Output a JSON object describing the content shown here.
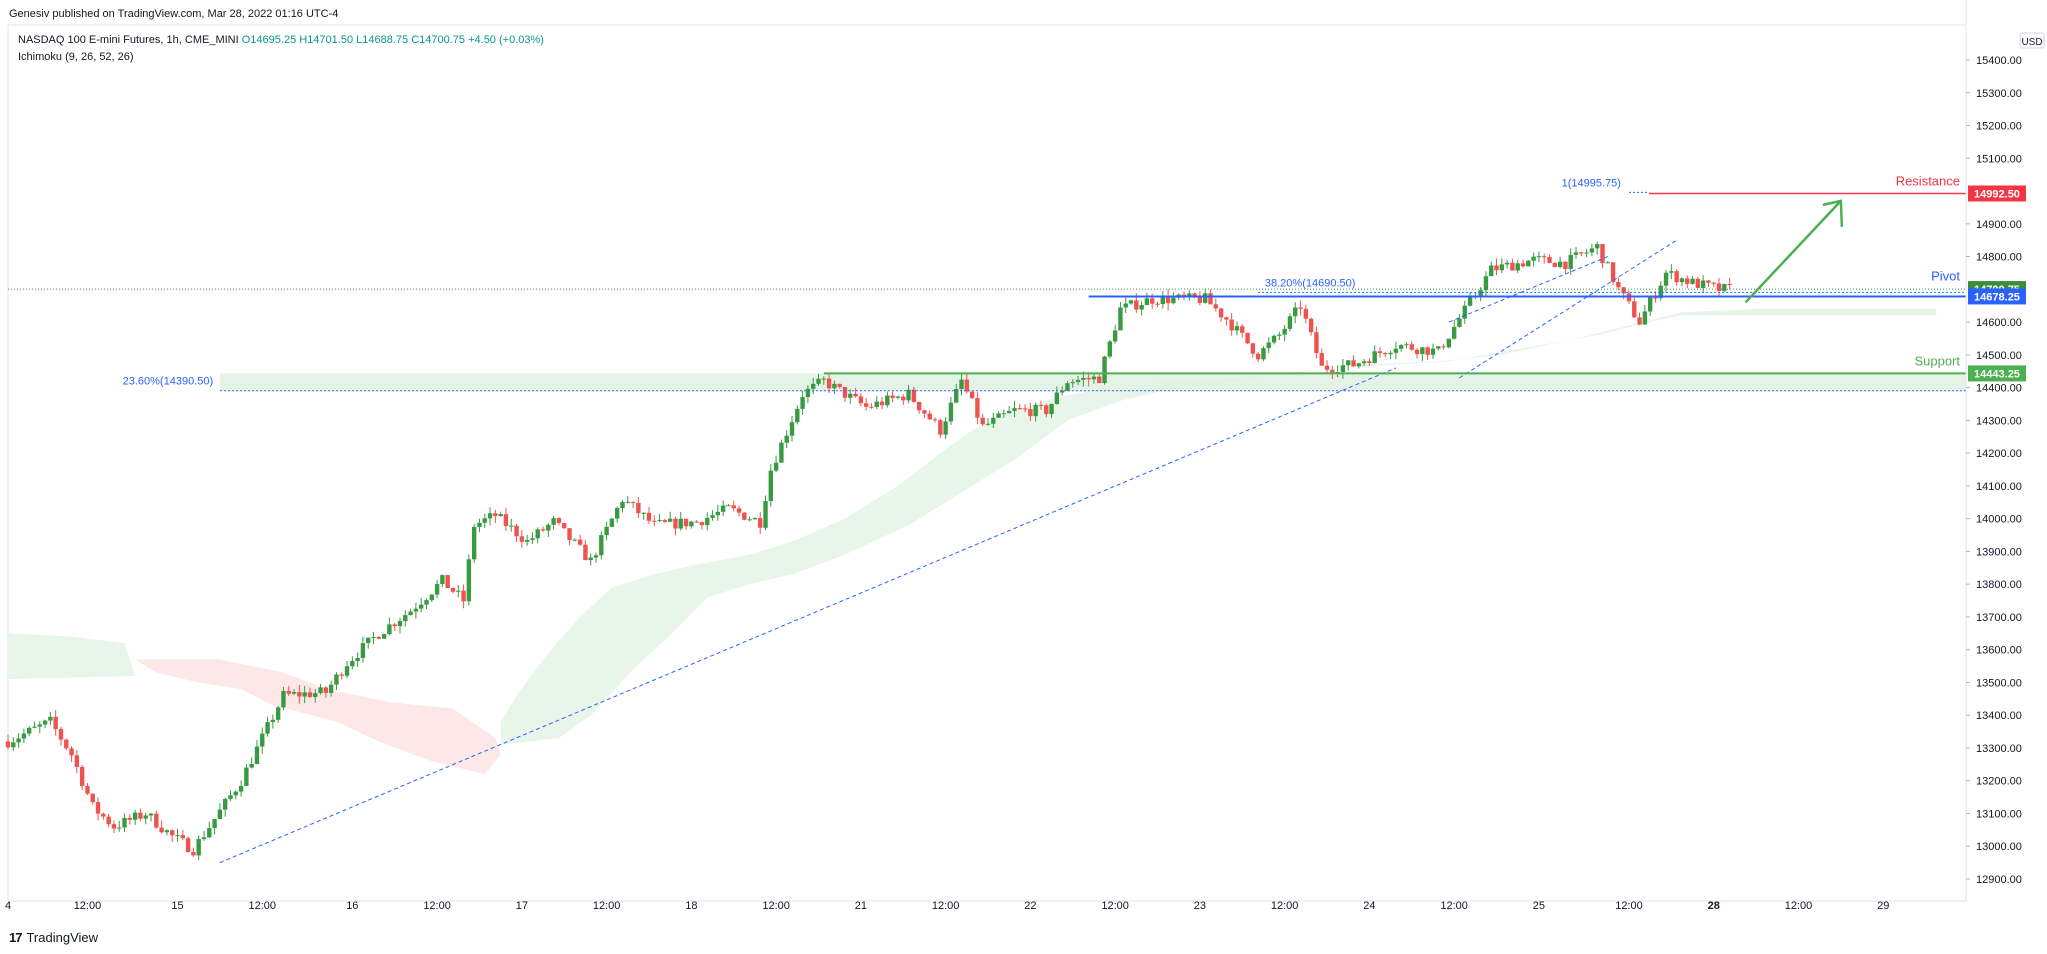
{
  "header": {
    "published": "Genesiv published on TradingView.com, Mar 28, 2022 01:16 UTC-4",
    "symbol": "NASDAQ 100 E-mini Futures, 1h, CME_MINI",
    "ohlc": {
      "o": "O14695.25",
      "h": "H14701.50",
      "l": "L14688.75",
      "c": "C14700.75",
      "change": "+4.50 (+0.03%)"
    },
    "indicator": "Ichimoku (9, 26, 52, 26)"
  },
  "footer": {
    "brand": "TradingView"
  },
  "colors": {
    "up": "#3a9a42",
    "down": "#ef5350",
    "blue": "#2962ff",
    "fib": "#2962ff",
    "green": "#4caf50",
    "red": "#f23645",
    "cloud_bull": "#e8f5e9",
    "cloud_bear": "#fde7e7"
  },
  "chart_data": {
    "type": "candlestick",
    "currency": "USD",
    "y_axis": {
      "range": [
        12900,
        15400
      ],
      "ticks": [
        "15400.00",
        "15300.00",
        "15200.00",
        "15100.00",
        "14900.00",
        "14800.00",
        "14600.00",
        "14500.00",
        "14400.00",
        "14300.00",
        "14200.00",
        "14100.00",
        "14000.00",
        "13900.00",
        "13800.00",
        "13700.00",
        "13600.00",
        "13500.00",
        "13400.00",
        "13300.00",
        "13200.00",
        "13100.00",
        "13000.00",
        "12900.00"
      ]
    },
    "x_axis": {
      "range": [
        0,
        370
      ],
      "ticks": [
        {
          "t": 0,
          "label": "4"
        },
        {
          "t": 15,
          "label": "12:00"
        },
        {
          "t": 32,
          "label": "15"
        },
        {
          "t": 48,
          "label": "12:00"
        },
        {
          "t": 65,
          "label": "16"
        },
        {
          "t": 81,
          "label": "12:00"
        },
        {
          "t": 97,
          "label": "17"
        },
        {
          "t": 113,
          "label": "12:00"
        },
        {
          "t": 129,
          "label": "18"
        },
        {
          "t": 145,
          "label": "12:00"
        },
        {
          "t": 161,
          "label": "21"
        },
        {
          "t": 177,
          "label": "12:00"
        },
        {
          "t": 193,
          "label": "22"
        },
        {
          "t": 209,
          "label": "12:00"
        },
        {
          "t": 225,
          "label": "23"
        },
        {
          "t": 241,
          "label": "12:00"
        },
        {
          "t": 257,
          "label": "24"
        },
        {
          "t": 273,
          "label": "12:00"
        },
        {
          "t": 289,
          "label": "25"
        },
        {
          "t": 306,
          "label": "12:00"
        },
        {
          "t": 322,
          "label": "28"
        },
        {
          "t": 338,
          "label": "12:00"
        },
        {
          "t": 354,
          "label": "29"
        }
      ]
    },
    "anchors": [
      {
        "t": 0,
        "p": 13320
      },
      {
        "t": 8,
        "p": 13380
      },
      {
        "t": 12,
        "p": 13280
      },
      {
        "t": 16,
        "p": 13120
      },
      {
        "t": 20,
        "p": 13060
      },
      {
        "t": 26,
        "p": 13100
      },
      {
        "t": 31,
        "p": 13030
      },
      {
        "t": 35,
        "p": 12990
      },
      {
        "t": 38,
        "p": 13060
      },
      {
        "t": 44,
        "p": 13200
      },
      {
        "t": 48,
        "p": 13330
      },
      {
        "t": 52,
        "p": 13460
      },
      {
        "t": 60,
        "p": 13470
      },
      {
        "t": 64,
        "p": 13560
      },
      {
        "t": 70,
        "p": 13650
      },
      {
        "t": 76,
        "p": 13720
      },
      {
        "t": 82,
        "p": 13810
      },
      {
        "t": 86,
        "p": 13750
      },
      {
        "t": 88,
        "p": 13980
      },
      {
        "t": 92,
        "p": 14010
      },
      {
        "t": 98,
        "p": 13930
      },
      {
        "t": 103,
        "p": 13990
      },
      {
        "t": 110,
        "p": 13870
      },
      {
        "t": 116,
        "p": 14060
      },
      {
        "t": 122,
        "p": 13980
      },
      {
        "t": 130,
        "p": 13990
      },
      {
        "t": 136,
        "p": 14030
      },
      {
        "t": 142,
        "p": 13990
      },
      {
        "t": 144,
        "p": 14150
      },
      {
        "t": 150,
        "p": 14380
      },
      {
        "t": 154,
        "p": 14420
      },
      {
        "t": 162,
        "p": 14340
      },
      {
        "t": 170,
        "p": 14380
      },
      {
        "t": 176,
        "p": 14270
      },
      {
        "t": 180,
        "p": 14420
      },
      {
        "t": 184,
        "p": 14280
      },
      {
        "t": 190,
        "p": 14330
      },
      {
        "t": 196,
        "p": 14330
      },
      {
        "t": 200,
        "p": 14420
      },
      {
        "t": 206,
        "p": 14430
      },
      {
        "t": 210,
        "p": 14640
      },
      {
        "t": 216,
        "p": 14670
      },
      {
        "t": 226,
        "p": 14670
      },
      {
        "t": 230,
        "p": 14610
      },
      {
        "t": 236,
        "p": 14500
      },
      {
        "t": 240,
        "p": 14560
      },
      {
        "t": 244,
        "p": 14650
      },
      {
        "t": 248,
        "p": 14460
      },
      {
        "t": 254,
        "p": 14470
      },
      {
        "t": 262,
        "p": 14530
      },
      {
        "t": 270,
        "p": 14510
      },
      {
        "t": 274,
        "p": 14610
      },
      {
        "t": 280,
        "p": 14760
      },
      {
        "t": 288,
        "p": 14790
      },
      {
        "t": 294,
        "p": 14780
      },
      {
        "t": 300,
        "p": 14830
      },
      {
        "t": 304,
        "p": 14700
      },
      {
        "t": 308,
        "p": 14600
      },
      {
        "t": 313,
        "p": 14750
      },
      {
        "t": 318,
        "p": 14720
      },
      {
        "t": 323,
        "p": 14700
      },
      {
        "t": 325,
        "p": 14700
      }
    ],
    "cloud_bull": [
      [
        [
          0,
          13650
        ],
        [
          12,
          13640
        ],
        [
          22,
          13620
        ],
        [
          24,
          13520
        ],
        [
          0,
          13510
        ]
      ],
      [
        [
          93,
          13310
        ],
        [
          104,
          13330
        ],
        [
          110,
          13400
        ],
        [
          118,
          13540
        ],
        [
          126,
          13660
        ],
        [
          132,
          13760
        ],
        [
          140,
          13800
        ],
        [
          148,
          13830
        ],
        [
          158,
          13890
        ],
        [
          170,
          13980
        ],
        [
          180,
          14080
        ],
        [
          190,
          14180
        ],
        [
          200,
          14300
        ],
        [
          210,
          14360
        ],
        [
          218,
          14390
        ],
        [
          228,
          14410
        ],
        [
          240,
          14440
        ],
        [
          250,
          14460
        ],
        [
          262,
          14470
        ],
        [
          272,
          14480
        ],
        [
          286,
          14520
        ],
        [
          300,
          14560
        ],
        [
          310,
          14600
        ],
        [
          316,
          14620
        ],
        [
          340,
          14620
        ],
        [
          364,
          14620
        ],
        [
          364,
          14640
        ],
        [
          330,
          14640
        ],
        [
          316,
          14630
        ],
        [
          306,
          14590
        ],
        [
          296,
          14550
        ],
        [
          282,
          14500
        ],
        [
          270,
          14480
        ],
        [
          256,
          14470
        ],
        [
          244,
          14450
        ],
        [
          232,
          14430
        ],
        [
          220,
          14420
        ],
        [
          208,
          14400
        ],
        [
          198,
          14370
        ],
        [
          190,
          14330
        ],
        [
          182,
          14270
        ],
        [
          176,
          14200
        ],
        [
          168,
          14100
        ],
        [
          158,
          14000
        ],
        [
          148,
          13930
        ],
        [
          140,
          13890
        ],
        [
          130,
          13860
        ],
        [
          122,
          13830
        ],
        [
          114,
          13790
        ],
        [
          108,
          13700
        ],
        [
          102,
          13590
        ],
        [
          96,
          13460
        ],
        [
          93,
          13380
        ]
      ]
    ],
    "cloud_bear": [
      [
        [
          24,
          13570
        ],
        [
          40,
          13570
        ],
        [
          52,
          13530
        ],
        [
          60,
          13480
        ],
        [
          72,
          13440
        ],
        [
          84,
          13420
        ],
        [
          92,
          13330
        ],
        [
          93,
          13280
        ],
        [
          90,
          13220
        ],
        [
          80,
          13260
        ],
        [
          70,
          13320
        ],
        [
          62,
          13380
        ],
        [
          55,
          13410
        ],
        [
          50,
          13430
        ],
        [
          44,
          13480
        ],
        [
          36,
          13500
        ],
        [
          28,
          13530
        ]
      ]
    ],
    "fib_levels": [
      {
        "label": "23.60%(14390.50)",
        "price": 14390.5,
        "from_t": 40
      },
      {
        "label": "38.20%(14690.50)",
        "price": 14690.5,
        "from_t": 236
      },
      {
        "label": "1(14995.75)",
        "price": 14995.75,
        "from_t": 306
      }
    ],
    "levels": {
      "resistance": {
        "label": "Resistance",
        "price": 14992.5,
        "price_label": "14992.50"
      },
      "pivot": {
        "label": "Pivot",
        "price": 14678.25,
        "price_label": "14678.25"
      },
      "support": {
        "label": "Support",
        "price": 14443.25,
        "price_label": "14443.25"
      },
      "last": {
        "price": 14700.75,
        "price_label": "14700.75"
      }
    },
    "trendlines": [
      {
        "from": [
          40,
          12950
        ],
        "to": [
          262,
          14460
        ]
      },
      {
        "from": [
          274,
          14430
        ],
        "to": [
          315,
          14850
        ]
      },
      {
        "from": [
          272,
          14600
        ],
        "to": [
          302,
          14800
        ]
      }
    ],
    "arrow": {
      "from": [
        328,
        14660
      ],
      "to": [
        346,
        14970
      ]
    }
  }
}
